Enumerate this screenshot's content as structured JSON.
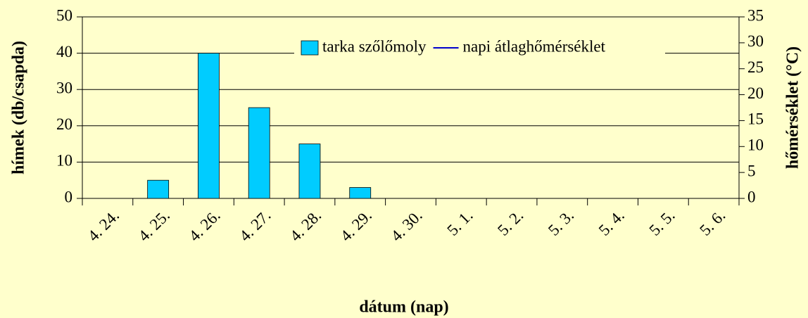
{
  "chart_data": {
    "type": "bar",
    "categories": [
      "4. 24.",
      "4. 25.",
      "4. 26.",
      "4. 27.",
      "4. 28.",
      "4. 29.",
      "4. 30.",
      "5. 1.",
      "5. 2.",
      "5. 3.",
      "5. 4.",
      "5. 5.",
      "5. 6."
    ],
    "series": [
      {
        "name": "tarka szőlőmoly",
        "color": "#00ccff",
        "values": [
          null,
          5,
          40,
          25,
          15,
          3,
          null,
          null,
          null,
          null,
          null,
          null,
          null
        ]
      },
      {
        "name": "napi átlaghőmérséklet",
        "color": "#0000cc",
        "axis": "y2",
        "values": [
          null,
          null,
          null,
          null,
          null,
          null,
          null,
          null,
          null,
          null,
          null,
          null,
          null
        ]
      }
    ],
    "ylabel": "hímek (db/csapda)",
    "y2label": "hőmérséklet (°C)",
    "xlabel": "dátum (nap)",
    "ylim": [
      0,
      50
    ],
    "yticks": [
      0,
      10,
      20,
      30,
      40,
      50
    ],
    "y2lim": [
      0,
      35
    ],
    "y2ticks": [
      0,
      5,
      10,
      15,
      20,
      25,
      30,
      35
    ],
    "grid": true,
    "legend": "top-right"
  }
}
